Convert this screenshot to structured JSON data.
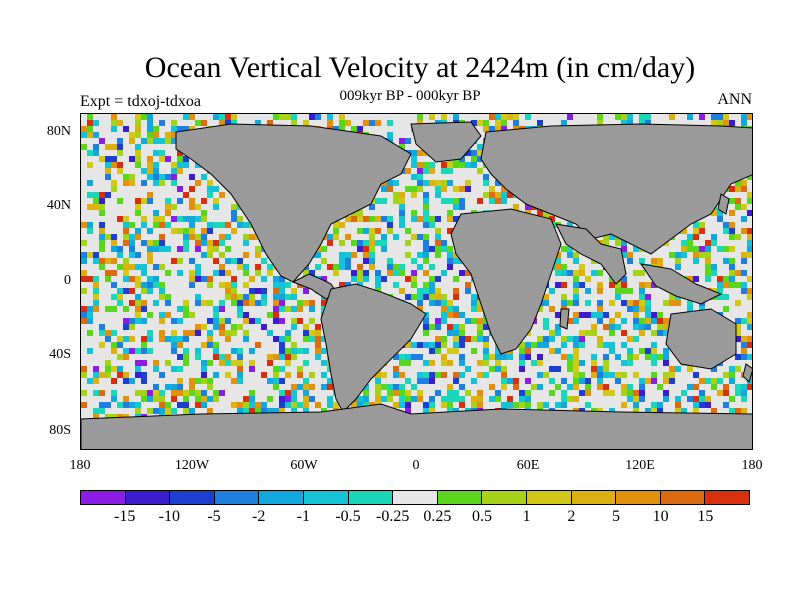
{
  "header": {
    "title": "Ocean Vertical Velocity at 2424m (in cm/day)",
    "subtitle": "009kyr BP - 000kyr BP",
    "left_label": "Expt = tdxoj-tdxoa",
    "right_label": "ANN"
  },
  "map": {
    "land_color": "#999999",
    "coast_color": "#000000",
    "lat_labels": [
      "80N",
      "40N",
      "0",
      "40S",
      "80S"
    ],
    "lon_labels": [
      "180",
      "120W",
      "60W",
      "0",
      "60E",
      "120E",
      "180"
    ]
  },
  "colorbar": {
    "colors": [
      "#8a1ce3",
      "#3c1ccf",
      "#1d3fd1",
      "#1f7fe0",
      "#12a7dd",
      "#14c4d6",
      "#1bd7b9",
      "#e6e6e6",
      "#5ad61d",
      "#a6d21a",
      "#d2c817",
      "#ddb012",
      "#e2910f",
      "#de6a10",
      "#d8300f"
    ],
    "labels": [
      "-15",
      "-10",
      "-5",
      "-2",
      "-1",
      "-0.5",
      "-0.25",
      "0.25",
      "0.5",
      "1",
      "2",
      "5",
      "10",
      "15"
    ]
  }
}
